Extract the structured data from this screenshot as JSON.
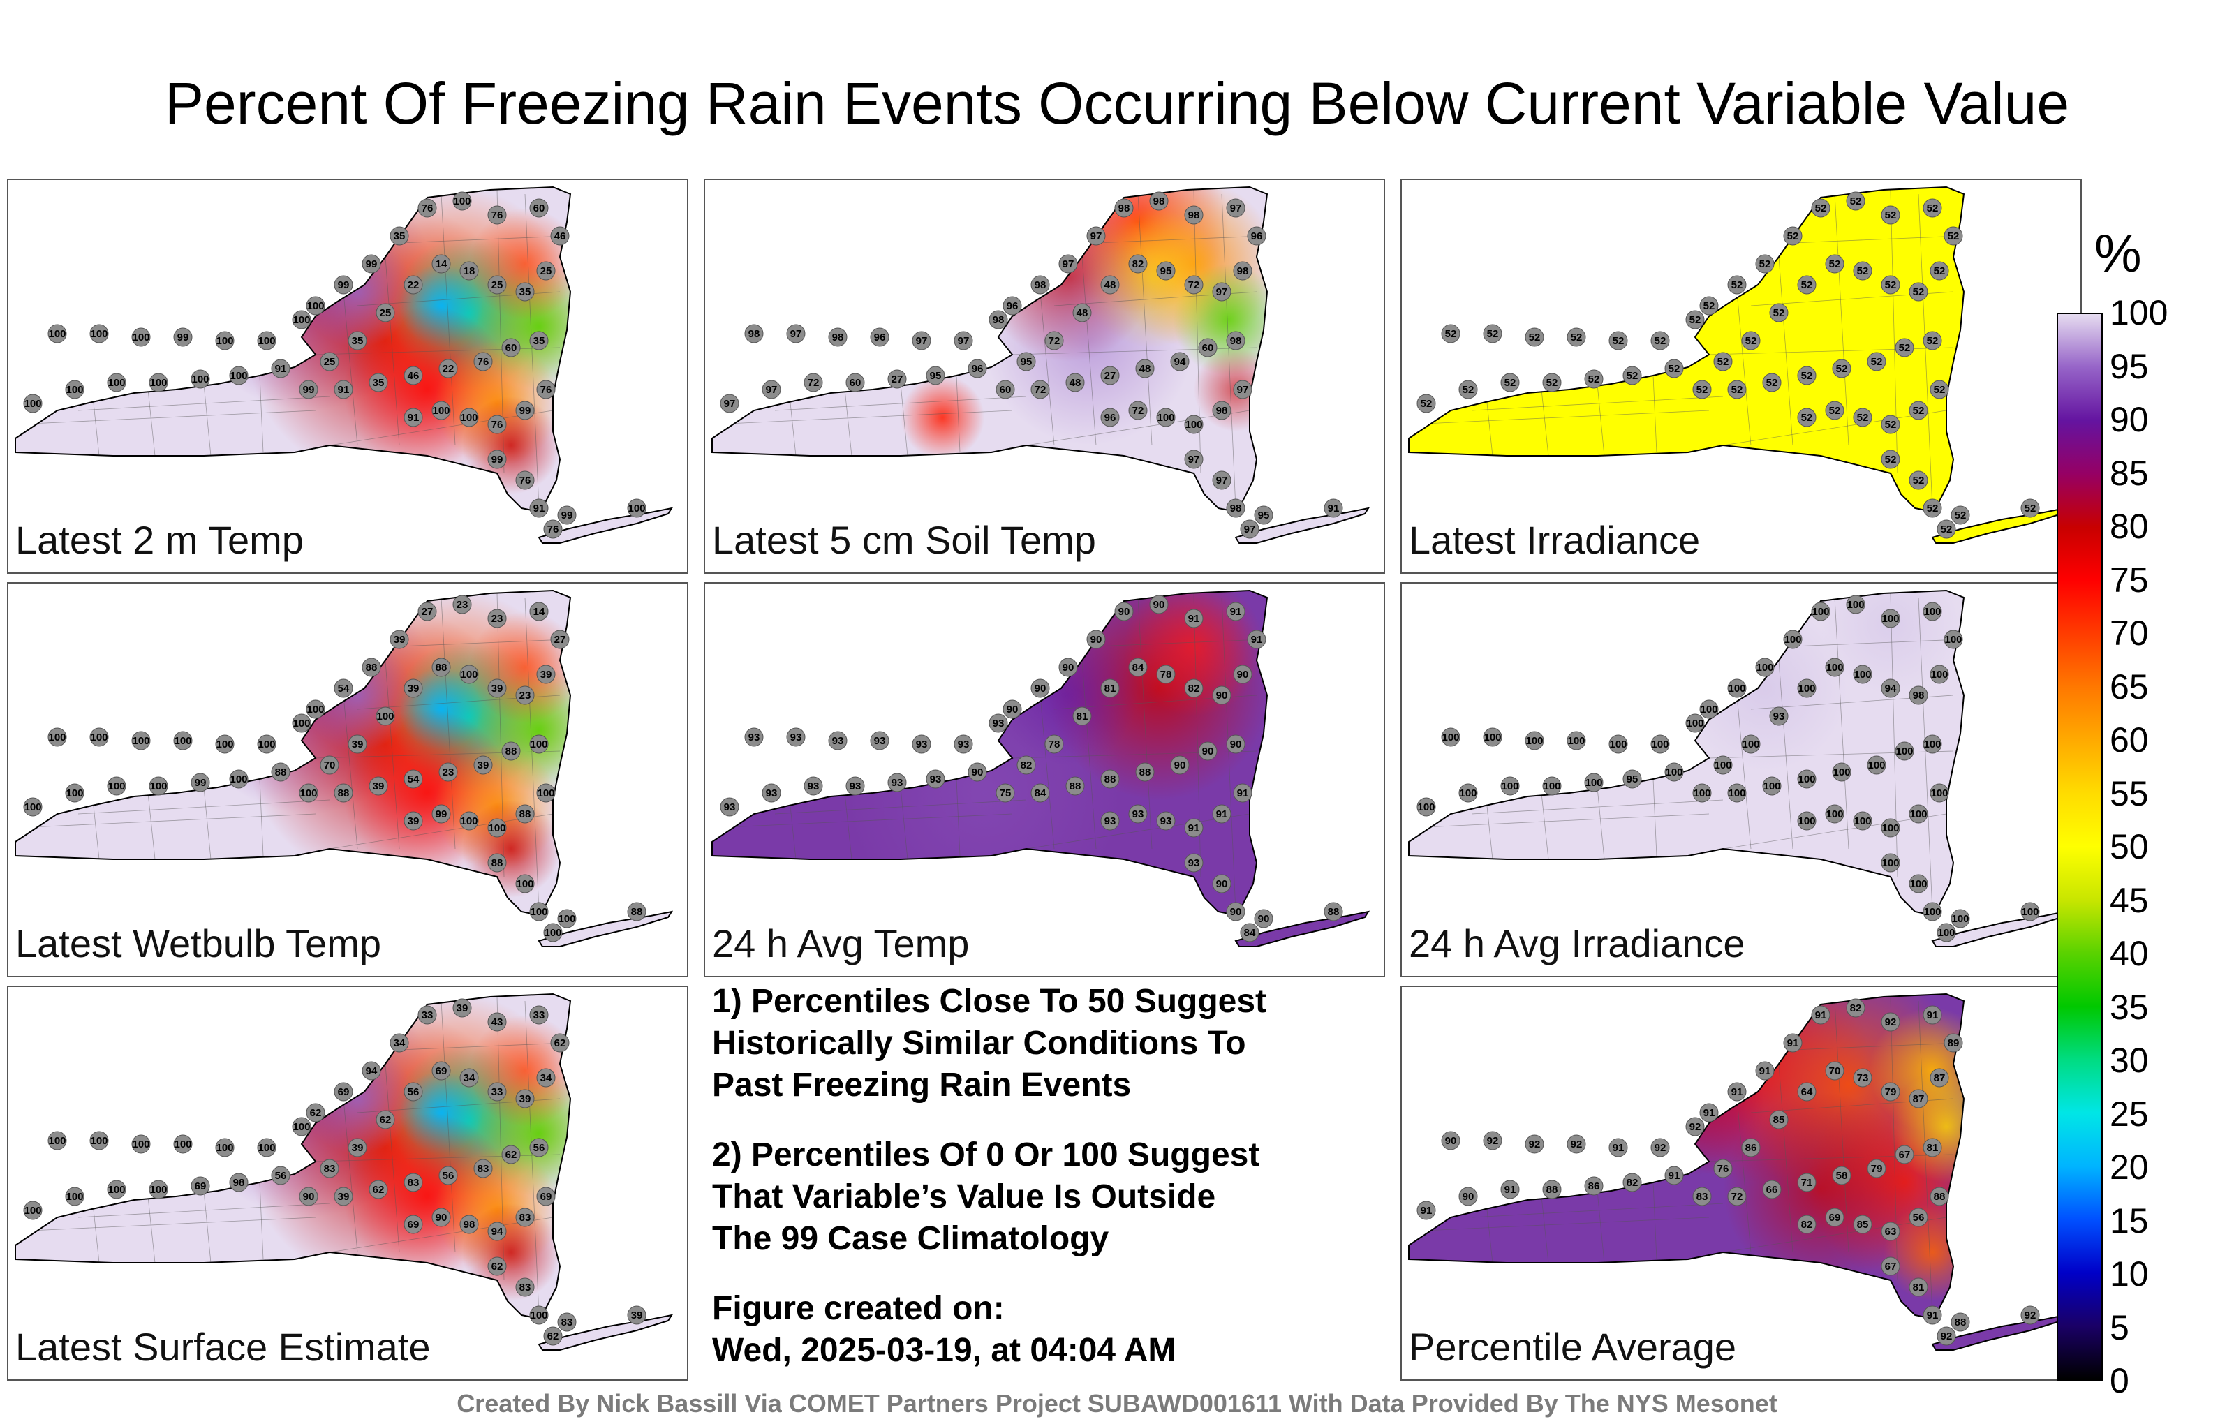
{
  "title": "Percent Of Freezing Rain Events Occurring Below Current Variable Value",
  "panels": [
    {
      "id": "t2m",
      "label": "Latest 2 m Temp",
      "style": "mixed-green",
      "stations": [
        "100",
        "100",
        "100",
        "99",
        "100",
        "100",
        "100",
        "100",
        "100",
        "100",
        "100",
        "100",
        "100",
        "91",
        "100",
        "99",
        "99",
        "35",
        "76",
        "100",
        "76",
        "60",
        "46",
        "25",
        "35",
        "25",
        "18",
        "14",
        "22",
        "25",
        "35",
        "25",
        "99",
        "91",
        "35",
        "46",
        "22",
        "76",
        "60",
        "35",
        "76",
        "99",
        "76",
        "100",
        "100",
        "91",
        "99",
        "76",
        "91",
        "99",
        "100",
        "76"
      ]
    },
    {
      "id": "soil5",
      "label": "Latest 5 cm Soil Temp",
      "style": "purple-red",
      "stations": [
        "98",
        "97",
        "98",
        "96",
        "97",
        "97",
        "98",
        "97",
        "97",
        "72",
        "60",
        "27",
        "95",
        "96",
        "96",
        "98",
        "97",
        "97",
        "98",
        "98",
        "98",
        "97",
        "96",
        "98",
        "97",
        "72",
        "95",
        "82",
        "48",
        "48",
        "72",
        "95",
        "60",
        "72",
        "48",
        "27",
        "48",
        "94",
        "60",
        "98",
        "97",
        "98",
        "100",
        "100",
        "72",
        "96",
        "97",
        "97",
        "98",
        "95",
        "91",
        "97"
      ]
    },
    {
      "id": "irr",
      "label": "Latest Irradiance",
      "style": "uniform-yellow",
      "stations": [
        "52",
        "52",
        "52",
        "52",
        "52",
        "52",
        "52",
        "52",
        "52",
        "52",
        "52",
        "52",
        "52",
        "52",
        "52",
        "52",
        "52",
        "52",
        "52",
        "52",
        "52",
        "52",
        "52",
        "52",
        "52",
        "52",
        "52",
        "52",
        "52",
        "52",
        "52",
        "52",
        "52",
        "52",
        "52",
        "52",
        "52",
        "52",
        "52",
        "52",
        "52",
        "52",
        "52",
        "52",
        "52",
        "52",
        "52",
        "52",
        "52",
        "52",
        "52",
        "52"
      ]
    },
    {
      "id": "wb",
      "label": "Latest Wetbulb Temp",
      "style": "mixed-green",
      "stations": [
        "100",
        "100",
        "100",
        "100",
        "100",
        "100",
        "100",
        "100",
        "100",
        "100",
        "100",
        "99",
        "100",
        "88",
        "100",
        "54",
        "88",
        "39",
        "27",
        "23",
        "23",
        "14",
        "27",
        "39",
        "23",
        "39",
        "100",
        "88",
        "39",
        "100",
        "39",
        "70",
        "100",
        "88",
        "39",
        "54",
        "23",
        "39",
        "88",
        "100",
        "100",
        "88",
        "100",
        "100",
        "99",
        "39",
        "88",
        "100",
        "100",
        "100",
        "88",
        "100"
      ]
    },
    {
      "id": "avgt",
      "label": "24 h Avg Temp",
      "style": "purple-mid",
      "stations": [
        "93",
        "93",
        "93",
        "93",
        "93",
        "93",
        "93",
        "93",
        "93",
        "93",
        "93",
        "93",
        "93",
        "90",
        "90",
        "90",
        "90",
        "90",
        "90",
        "90",
        "91",
        "91",
        "91",
        "90",
        "90",
        "82",
        "78",
        "84",
        "81",
        "81",
        "78",
        "82",
        "75",
        "84",
        "88",
        "88",
        "88",
        "90",
        "90",
        "90",
        "91",
        "91",
        "91",
        "93",
        "93",
        "93",
        "93",
        "90",
        "90",
        "90",
        "88",
        "84"
      ]
    },
    {
      "id": "avgirr",
      "label": "24 h Avg Irradiance",
      "style": "uniform-lavender",
      "stations": [
        "100",
        "100",
        "100",
        "100",
        "100",
        "100",
        "100",
        "100",
        "100",
        "100",
        "100",
        "100",
        "95",
        "100",
        "100",
        "100",
        "100",
        "100",
        "100",
        "100",
        "100",
        "100",
        "100",
        "100",
        "98",
        "94",
        "100",
        "100",
        "100",
        "93",
        "100",
        "100",
        "100",
        "100",
        "100",
        "100",
        "100",
        "100",
        "100",
        "100",
        "100",
        "100",
        "100",
        "100",
        "100",
        "100",
        "100",
        "100",
        "100",
        "100",
        "100",
        "100"
      ]
    },
    {
      "id": "surf",
      "label": "Latest Surface Estimate",
      "style": "mixed-green",
      "stations": [
        "100",
        "100",
        "100",
        "100",
        "100",
        "100",
        "100",
        "100",
        "100",
        "100",
        "100",
        "69",
        "98",
        "56",
        "62",
        "69",
        "94",
        "34",
        "33",
        "39",
        "43",
        "33",
        "62",
        "34",
        "39",
        "33",
        "34",
        "69",
        "56",
        "62",
        "39",
        "83",
        "90",
        "39",
        "62",
        "83",
        "56",
        "83",
        "62",
        "56",
        "69",
        "83",
        "94",
        "98",
        "90",
        "69",
        "62",
        "83",
        "100",
        "83",
        "39",
        "62"
      ]
    },
    {
      "id": "avg",
      "label": "Percentile Average",
      "style": "avg-mixed",
      "stations": [
        "90",
        "92",
        "92",
        "92",
        "91",
        "92",
        "92",
        "91",
        "90",
        "91",
        "88",
        "86",
        "82",
        "91",
        "91",
        "91",
        "91",
        "91",
        "91",
        "82",
        "92",
        "91",
        "89",
        "87",
        "87",
        "79",
        "73",
        "70",
        "64",
        "85",
        "86",
        "76",
        "83",
        "72",
        "66",
        "71",
        "58",
        "79",
        "67",
        "81",
        "88",
        "56",
        "63",
        "85",
        "69",
        "82",
        "67",
        "81",
        "91",
        "88",
        "92",
        "92"
      ]
    }
  ],
  "notes": {
    "note1_line1": "1) Percentiles Close To 50 Suggest",
    "note1_line2": "Historically Similar Conditions To",
    "note1_line3": "Past Freezing Rain Events",
    "note2_line1": "2) Percentiles Of 0 Or 100 Suggest",
    "note2_line2": "That Variable’s Value Is Outside",
    "note2_line3": "The 99 Case Climatology",
    "created_label": "Figure created on:",
    "created_date": "Wed, 2025-03-19, at 04:04 AM"
  },
  "colorbar": {
    "unit": "%",
    "ticks": [
      "0",
      "5",
      "10",
      "15",
      "20",
      "25",
      "30",
      "35",
      "40",
      "45",
      "50",
      "55",
      "60",
      "65",
      "70",
      "75",
      "80",
      "85",
      "90",
      "95",
      "100"
    ],
    "colors": [
      "#000000",
      "#1a0066",
      "#0000c8",
      "#0050ff",
      "#00b4ff",
      "#00e6e6",
      "#00dc82",
      "#00c800",
      "#5ad200",
      "#c8e600",
      "#ffff00",
      "#ffdc00",
      "#ffaa00",
      "#ff7800",
      "#ff3c00",
      "#ff0000",
      "#c80000",
      "#960064",
      "#6414a0",
      "#9664c8",
      "#e6dcf0"
    ]
  },
  "footer": "Created By Nick Bassill Via COMET Partners Project SUBAWD001611 With Data Provided By The NYS Mesonet"
}
